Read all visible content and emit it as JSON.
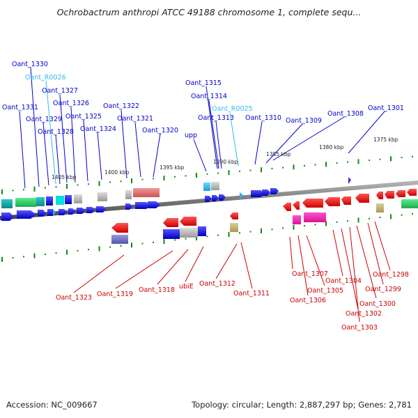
{
  "header": {
    "title": "Ochrobactrum anthropi ATCC 49188 chromosome 1, complete sequ..."
  },
  "footer": {
    "accession": "Accession: NC_009667",
    "summary": "Topology: circular; Length: 2,887,297 bp; Genes: 2,781"
  },
  "scale_labels": [
    "1405 kbp",
    "1400 kbp",
    "1395 kbp",
    "1390 kbp",
    "1385 kbp",
    "1380 kbp",
    "1375 kbp"
  ],
  "forward_labels": [
    "Oant_1330",
    "Oant_R0026",
    "Oant_1327",
    "Oant_1331",
    "Oant_1326",
    "Oant_1329",
    "Oant_1325",
    "Oant_1328",
    "Oant_1324",
    "Oant_1322",
    "Oant_1321",
    "Oant_1320",
    "Oant_1315",
    "Oant_1314",
    "Oant_R0025",
    "Oant_1313",
    "upp",
    "Oant_1310",
    "Oant_1309",
    "Oant_1308",
    "Oant_1301"
  ],
  "reverse_labels": [
    "Oant_1323",
    "Oant_1319",
    "Oant_1318",
    "ubiE",
    "Oant_1312",
    "Oant_1311",
    "Oant_1307",
    "Oant_1306",
    "Oant_1305",
    "Oant_1304",
    "Oant_1302",
    "Oant_1303",
    "Oant_1300",
    "Oant_1299",
    "Oant_1298"
  ],
  "colors": {
    "forward_gene": "#0000dd",
    "reverse_gene": "#ee0000",
    "rna_gene": "#33bbee",
    "backbone": "#777777",
    "tick": "#118811"
  }
}
